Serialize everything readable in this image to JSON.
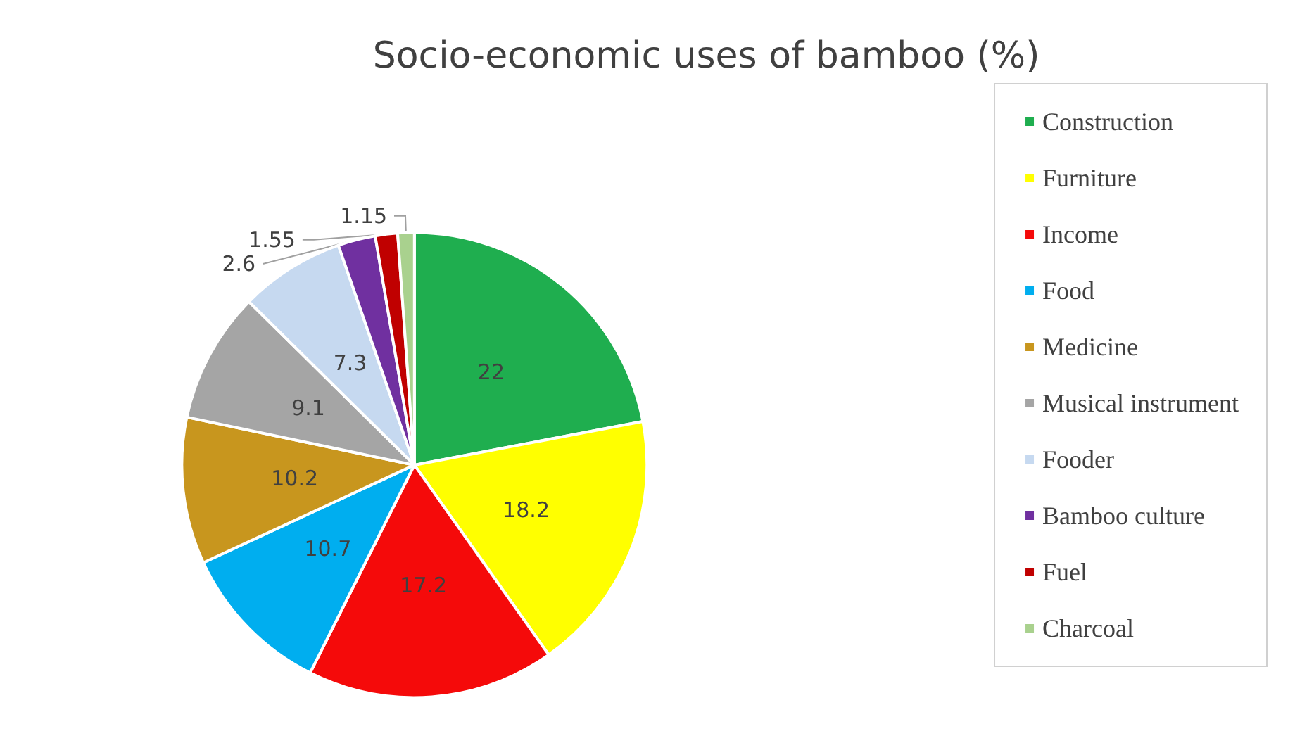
{
  "chart_data": {
    "type": "pie",
    "title": "Socio-economic uses of bamboo (%)",
    "categories": [
      "Construction",
      "Furniture",
      "Income",
      "Food",
      "Medicine",
      "Musical instrument",
      "Fooder",
      "Bamboo culture",
      "Fuel",
      "Charcoal"
    ],
    "values": [
      22,
      18.2,
      17.2,
      10.7,
      10.2,
      9.1,
      7.3,
      2.6,
      1.55,
      1.15
    ],
    "colors": [
      "#1fae4f",
      "#ffff00",
      "#f50a0a",
      "#00aeef",
      "#c8961e",
      "#a5a5a5",
      "#c6d9f0",
      "#7030a0",
      "#c00000",
      "#a9d18e"
    ],
    "data_labels": true,
    "legend": "right"
  }
}
